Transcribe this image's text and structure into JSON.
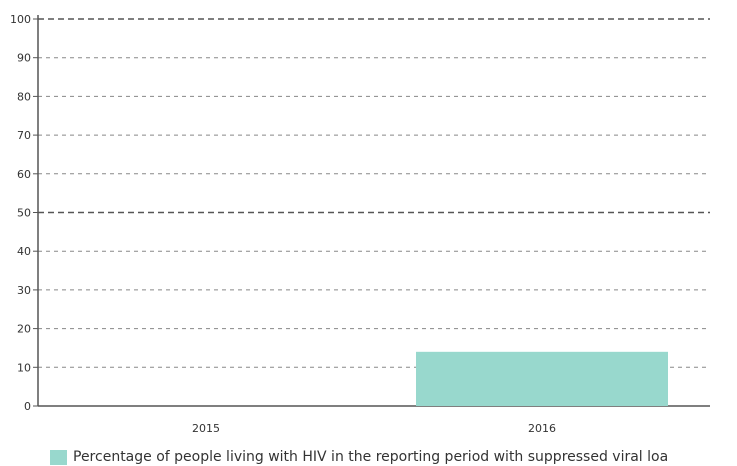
{
  "chart_data": {
    "type": "bar",
    "categories": [
      "2015",
      "2016"
    ],
    "series": [
      {
        "name": "Percentage of people living with HIV in the reporting period with suppressed viral loa",
        "values": [
          null,
          14
        ],
        "color": "#98d8cd"
      }
    ],
    "ylim": [
      0,
      100
    ],
    "yticks": [
      0,
      10,
      20,
      30,
      40,
      50,
      60,
      70,
      80,
      90,
      100
    ],
    "major_gridlines": [
      50,
      100
    ],
    "grid": true,
    "legend_position": "bottom-left",
    "title": "",
    "xlabel": "",
    "ylabel": ""
  }
}
